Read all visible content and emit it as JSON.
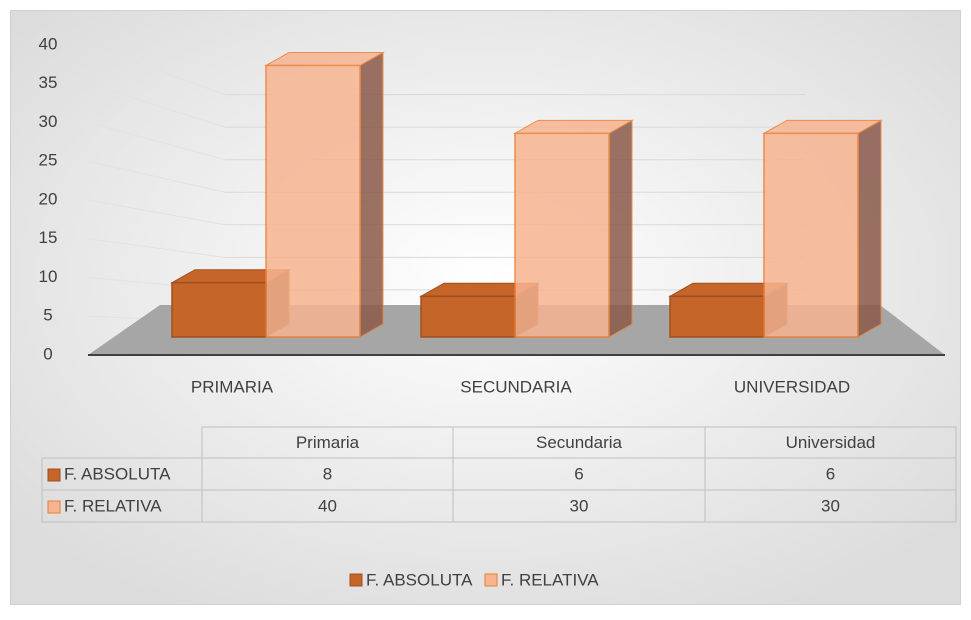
{
  "chart_data": {
    "type": "bar3d",
    "categories": [
      "PRIMARIA",
      "SECUNDARIA",
      "UNIVERSIDAD"
    ],
    "series": [
      {
        "name": "F. ABSOLUTA",
        "color": "#c5652a",
        "values": [
          8,
          6,
          6
        ]
      },
      {
        "name": "F. RELATIVA",
        "color": "#f7b491",
        "values": [
          40,
          30,
          30
        ]
      }
    ],
    "ylim": [
      0,
      40
    ],
    "yticks": [
      0,
      5,
      10,
      15,
      20,
      25,
      30,
      35,
      40
    ],
    "grid": true,
    "legend": "bottom",
    "data_table": {
      "columns": [
        "Primaria",
        "Secundaria",
        "Universidad"
      ]
    }
  }
}
